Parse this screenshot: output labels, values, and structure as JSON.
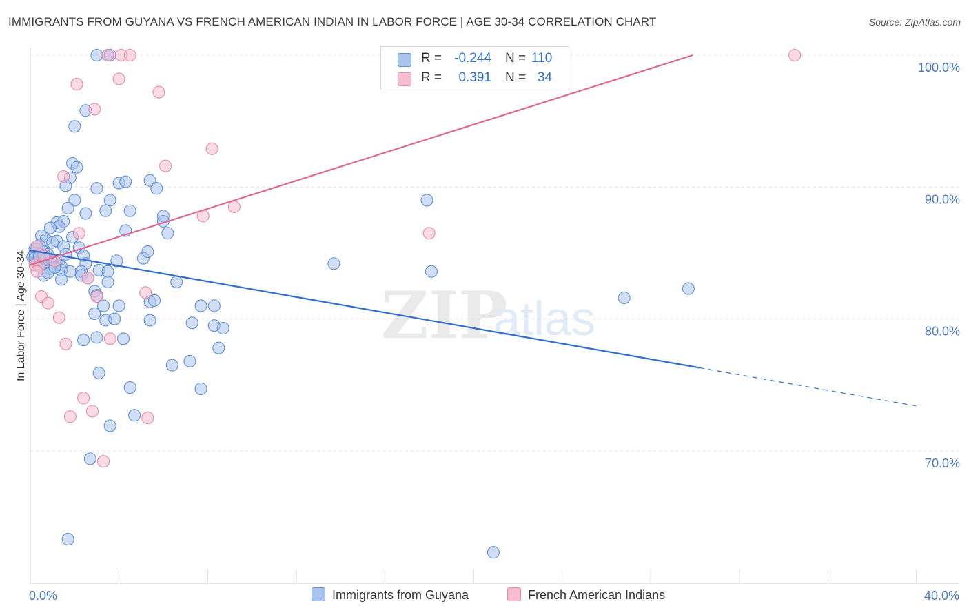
{
  "title": "IMMIGRANTS FROM GUYANA VS FRENCH AMERICAN INDIAN IN LABOR FORCE | AGE 30-34 CORRELATION CHART",
  "source": "Source: ZipAtlas.com",
  "watermark": {
    "zip": "ZIP",
    "atlas": "atlas"
  },
  "legend": {
    "r_label": "R =",
    "n_label": "N =",
    "series": [
      {
        "r": "-0.244",
        "n": "110"
      },
      {
        "r": "0.391",
        "n": "34"
      }
    ]
  },
  "colors": {
    "blue_fill": "#aac4ee",
    "blue_stroke": "#5f8fd8",
    "blue_line": "#2f6fd0",
    "pink_fill": "#f6bccf",
    "pink_stroke": "#e88aa8",
    "pink_line": "#e06890"
  },
  "chart_data": {
    "type": "scatter",
    "title": "IMMIGRANTS FROM GUYANA VS FRENCH AMERICAN INDIAN IN LABOR FORCE | AGE 30-34 CORRELATION CHART",
    "xlabel": "",
    "ylabel": "In Labor Force | Age 30-34",
    "xlim": [
      0,
      40
    ],
    "ylim": [
      61,
      101.5
    ],
    "x_tick_labels": [
      "0.0%",
      "40.0%"
    ],
    "y_ticks": [
      70,
      80,
      90,
      100
    ],
    "y_tick_labels": [
      "70.0%",
      "80.0%",
      "90.0%",
      "100.0%"
    ],
    "grid": true,
    "legend_position": "top-center",
    "series": [
      {
        "name": "Immigrants from Guyana",
        "r": -0.244,
        "n": 110,
        "trend": {
          "x": [
            0,
            30.2
          ],
          "y": [
            85.2,
            76.3
          ],
          "dashed_to": [
            40,
            73.4
          ]
        },
        "points": [
          [
            3.0,
            100.0
          ],
          [
            3.5,
            100.0
          ],
          [
            3.6,
            100.0
          ],
          [
            2.5,
            95.8
          ],
          [
            2.0,
            94.6
          ],
          [
            1.9,
            91.8
          ],
          [
            2.1,
            91.5
          ],
          [
            1.8,
            90.7
          ],
          [
            1.6,
            90.1
          ],
          [
            3.0,
            89.9
          ],
          [
            4.0,
            90.3
          ],
          [
            4.3,
            90.4
          ],
          [
            5.4,
            90.5
          ],
          [
            5.7,
            89.9
          ],
          [
            2.0,
            89.0
          ],
          [
            3.6,
            89.0
          ],
          [
            1.7,
            88.4
          ],
          [
            3.4,
            88.2
          ],
          [
            4.5,
            88.2
          ],
          [
            6.0,
            87.8
          ],
          [
            2.5,
            88.0
          ],
          [
            1.2,
            87.3
          ],
          [
            1.5,
            87.4
          ],
          [
            1.3,
            87.0
          ],
          [
            6.0,
            87.4
          ],
          [
            0.9,
            86.9
          ],
          [
            0.5,
            86.3
          ],
          [
            1.9,
            86.2
          ],
          [
            4.3,
            86.7
          ],
          [
            6.2,
            86.5
          ],
          [
            0.7,
            86.0
          ],
          [
            1.0,
            85.8
          ],
          [
            1.2,
            85.9
          ],
          [
            1.5,
            85.5
          ],
          [
            2.2,
            85.4
          ],
          [
            0.4,
            85.6
          ],
          [
            0.2,
            85.3
          ],
          [
            0.6,
            85.1
          ],
          [
            0.8,
            84.9
          ],
          [
            1.6,
            84.9
          ],
          [
            2.4,
            84.8
          ],
          [
            5.1,
            84.6
          ],
          [
            5.3,
            85.1
          ],
          [
            0.1,
            84.7
          ],
          [
            0.3,
            84.5
          ],
          [
            0.4,
            84.4
          ],
          [
            0.5,
            84.6
          ],
          [
            1.0,
            84.3
          ],
          [
            1.1,
            84.4
          ],
          [
            1.3,
            84.1
          ],
          [
            1.4,
            84.0
          ],
          [
            2.5,
            84.2
          ],
          [
            3.9,
            84.4
          ],
          [
            0.9,
            83.8
          ],
          [
            1.4,
            83.7
          ],
          [
            1.8,
            83.6
          ],
          [
            2.3,
            83.6
          ],
          [
            3.1,
            83.7
          ],
          [
            3.5,
            83.6
          ],
          [
            0.6,
            83.3
          ],
          [
            0.8,
            83.5
          ],
          [
            2.3,
            83.3
          ],
          [
            1.4,
            83.0
          ],
          [
            2.6,
            83.1
          ],
          [
            3.5,
            82.8
          ],
          [
            6.6,
            82.8
          ],
          [
            2.9,
            82.1
          ],
          [
            3.0,
            81.8
          ],
          [
            5.4,
            81.3
          ],
          [
            5.6,
            81.4
          ],
          [
            3.3,
            81.0
          ],
          [
            4.0,
            81.0
          ],
          [
            7.7,
            81.0
          ],
          [
            8.3,
            81.0
          ],
          [
            2.9,
            80.4
          ],
          [
            3.4,
            79.9
          ],
          [
            3.8,
            80.0
          ],
          [
            5.4,
            79.9
          ],
          [
            7.3,
            79.7
          ],
          [
            8.3,
            79.5
          ],
          [
            8.7,
            79.3
          ],
          [
            3.0,
            78.6
          ],
          [
            4.2,
            78.5
          ],
          [
            2.4,
            78.4
          ],
          [
            8.5,
            77.8
          ],
          [
            7.2,
            76.8
          ],
          [
            6.4,
            76.5
          ],
          [
            3.1,
            75.9
          ],
          [
            4.5,
            74.8
          ],
          [
            7.7,
            74.7
          ],
          [
            4.7,
            72.7
          ],
          [
            3.6,
            71.9
          ],
          [
            2.7,
            69.4
          ],
          [
            17.9,
            89.0
          ],
          [
            13.7,
            84.2
          ],
          [
            18.1,
            83.6
          ],
          [
            26.8,
            81.6
          ],
          [
            29.7,
            82.3
          ],
          [
            1.7,
            63.3
          ],
          [
            20.9,
            62.3
          ],
          [
            0.3,
            84.2
          ],
          [
            1.1,
            83.9
          ],
          [
            0.7,
            84.8
          ],
          [
            0.2,
            85.0
          ],
          [
            0.4,
            84.9
          ],
          [
            0.5,
            84.3
          ],
          [
            0.2,
            84.6
          ],
          [
            0.3,
            85.5
          ],
          [
            0.6,
            84.2
          ],
          [
            0.7,
            84.5
          ],
          [
            0.4,
            84.7
          ]
        ]
      },
      {
        "name": "French American Indians",
        "r": 0.391,
        "n": 34,
        "trend": {
          "x": [
            0,
            29.9
          ],
          "y": [
            84.1,
            100.0
          ]
        },
        "points": [
          [
            3.5,
            100.0
          ],
          [
            4.1,
            100.0
          ],
          [
            4.5,
            100.0
          ],
          [
            34.5,
            100.0
          ],
          [
            2.1,
            97.8
          ],
          [
            4.0,
            98.2
          ],
          [
            5.8,
            97.2
          ],
          [
            2.9,
            95.9
          ],
          [
            8.2,
            92.9
          ],
          [
            6.1,
            91.6
          ],
          [
            1.5,
            90.8
          ],
          [
            9.2,
            88.5
          ],
          [
            7.8,
            87.8
          ],
          [
            2.2,
            86.5
          ],
          [
            18.0,
            86.5
          ],
          [
            0.3,
            85.5
          ],
          [
            0.6,
            84.8
          ],
          [
            1.1,
            84.4
          ],
          [
            0.2,
            84.1
          ],
          [
            0.4,
            84.0
          ],
          [
            0.3,
            83.6
          ],
          [
            2.6,
            83.1
          ],
          [
            5.2,
            82.0
          ],
          [
            0.5,
            81.7
          ],
          [
            3.0,
            81.7
          ],
          [
            0.8,
            81.2
          ],
          [
            1.3,
            80.1
          ],
          [
            3.6,
            78.5
          ],
          [
            1.6,
            78.1
          ],
          [
            2.4,
            74.0
          ],
          [
            2.8,
            73.0
          ],
          [
            1.8,
            72.6
          ],
          [
            5.3,
            72.5
          ],
          [
            3.3,
            69.2
          ]
        ]
      }
    ]
  },
  "bottom_legend": [
    "Immigrants from Guyana",
    "French American Indians"
  ]
}
